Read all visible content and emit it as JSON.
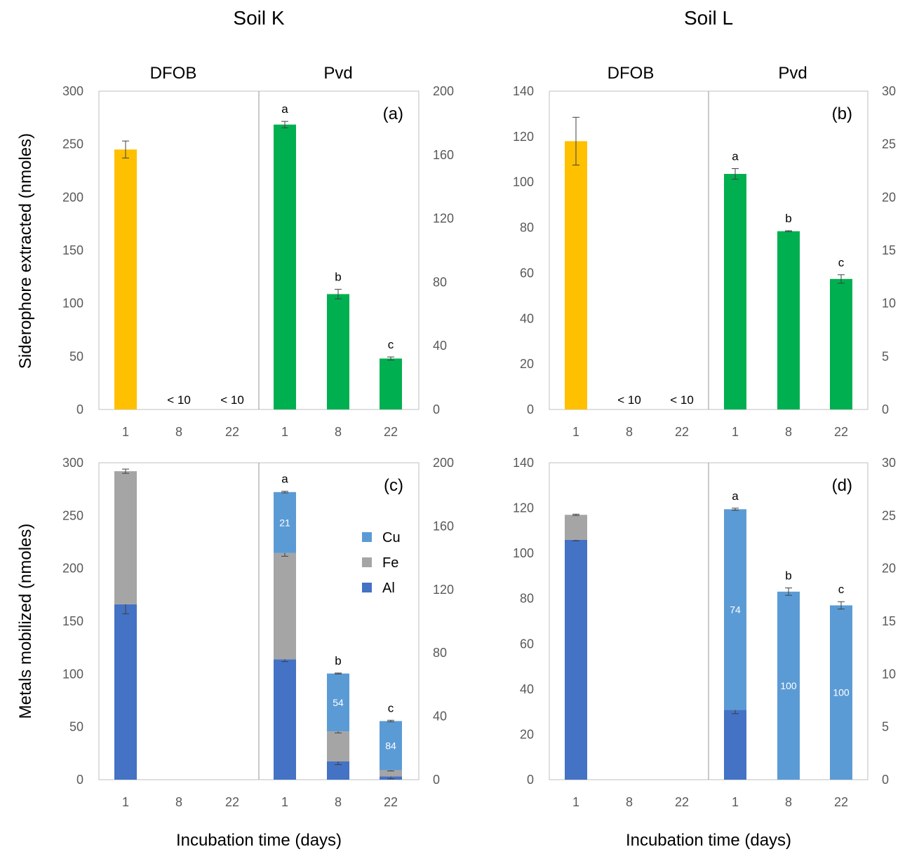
{
  "figure": {
    "titles": {
      "soil_k": "Soil K",
      "soil_l": "Soil L"
    },
    "headers": {
      "dfob": "DFOB",
      "pvd": "Pvd"
    },
    "ylabel_top": "Siderophore extracted (nmoles)",
    "ylabel_bottom": "Metals mobilized (nmoles)",
    "xlabel": "Incubation time (days)",
    "legend": [
      "Cu",
      "Fe",
      "Al"
    ]
  },
  "colors": {
    "dfob": "#FFC000",
    "pvd": "#00B050",
    "Cu": "#5B9BD5",
    "Fe": "#A5A5A5",
    "Al": "#4472C4",
    "axis": "#BFBFBF",
    "tick_text": "#595959"
  },
  "chart_data": [
    {
      "panel": "(a)",
      "type": "bar",
      "soil": "Soil K",
      "categories": [
        "1",
        "8",
        "22"
      ],
      "dfob": {
        "y_axis": "left",
        "ylim": [
          0,
          300
        ],
        "ticks": [
          0,
          50,
          100,
          150,
          200,
          250,
          300
        ],
        "values": [
          245,
          null,
          null
        ],
        "errors": [
          8,
          null,
          null
        ],
        "labels": [
          "",
          "< 10",
          "< 10"
        ]
      },
      "pvd": {
        "y_axis": "right",
        "ylim": [
          0,
          200
        ],
        "ticks": [
          0,
          40,
          80,
          120,
          160,
          200
        ],
        "values": [
          179,
          72.5,
          32
        ],
        "errors": [
          2,
          3,
          1
        ],
        "letters": [
          "a",
          "b",
          "c"
        ]
      }
    },
    {
      "panel": "(b)",
      "type": "bar",
      "soil": "Soil L",
      "categories": [
        "1",
        "8",
        "22"
      ],
      "dfob": {
        "y_axis": "left",
        "ylim": [
          0,
          140
        ],
        "ticks": [
          0,
          20,
          40,
          60,
          80,
          100,
          120,
          140
        ],
        "values": [
          118,
          null,
          null
        ],
        "errors": [
          10.5,
          null,
          null
        ],
        "labels": [
          "",
          "< 10",
          "< 10"
        ]
      },
      "pvd": {
        "y_axis": "right",
        "ylim": [
          0,
          30
        ],
        "ticks": [
          0,
          5,
          10,
          15,
          20,
          25,
          30
        ],
        "values": [
          22.2,
          16.8,
          12.3
        ],
        "errors": [
          0.5,
          0.05,
          0.4
        ],
        "letters": [
          "a",
          "b",
          "c"
        ]
      }
    },
    {
      "panel": "(c)",
      "type": "bar",
      "stacked": true,
      "soil": "Soil K",
      "categories": [
        "1",
        "8",
        "22"
      ],
      "dfob": {
        "y_axis": "left",
        "ylim": [
          0,
          300
        ],
        "ticks": [
          0,
          50,
          100,
          150,
          200,
          250,
          300
        ],
        "series": [
          {
            "name": "Al",
            "values": [
              166,
              0,
              0
            ],
            "errors": [
              9,
              0,
              0
            ]
          },
          {
            "name": "Fe",
            "values": [
              126,
              0,
              0
            ],
            "errors": [
              2,
              0,
              0
            ]
          },
          {
            "name": "Cu",
            "values": [
              0,
              0,
              0
            ],
            "errors": [
              0,
              0,
              0
            ]
          }
        ]
      },
      "pvd": {
        "y_axis": "right",
        "ylim": [
          0,
          200
        ],
        "ticks": [
          0,
          40,
          80,
          120,
          160,
          200
        ],
        "series": [
          {
            "name": "Al",
            "values": [
              76,
              11.5,
              2
            ],
            "errors": [
              1.5,
              2,
              1.5
            ]
          },
          {
            "name": "Fe",
            "values": [
              67,
              19,
              4
            ],
            "errors": [
              2,
              1,
              0.5
            ]
          },
          {
            "name": "Cu",
            "values": [
              38.5,
              36.5,
              31
            ],
            "errors": [
              0.5,
              0.3,
              0.5
            ]
          }
        ],
        "letters": [
          "a",
          "b",
          "c"
        ],
        "bar_labels": [
          "21",
          "54",
          "84"
        ]
      }
    },
    {
      "panel": "(d)",
      "type": "bar",
      "stacked": true,
      "soil": "Soil L",
      "categories": [
        "1",
        "8",
        "22"
      ],
      "dfob": {
        "y_axis": "left",
        "ylim": [
          0,
          140
        ],
        "ticks": [
          0,
          20,
          40,
          60,
          80,
          100,
          120,
          140
        ],
        "series": [
          {
            "name": "Al",
            "values": [
              106,
              0,
              0
            ],
            "errors": [
              0.5,
              0,
              0
            ]
          },
          {
            "name": "Fe",
            "values": [
              11,
              0,
              0
            ],
            "errors": [
              0.3,
              0,
              0
            ]
          },
          {
            "name": "Cu",
            "values": [
              0,
              0,
              0
            ],
            "errors": [
              0,
              0,
              0
            ]
          }
        ]
      },
      "pvd": {
        "y_axis": "right",
        "ylim": [
          0,
          30
        ],
        "ticks": [
          0,
          5,
          10,
          15,
          20,
          25,
          30
        ],
        "series": [
          {
            "name": "Al",
            "values": [
              6.6,
              0,
              0
            ],
            "errors": [
              0.35,
              0,
              0
            ]
          },
          {
            "name": "Fe",
            "values": [
              0,
              0,
              0
            ],
            "errors": [
              0,
              0,
              0
            ]
          },
          {
            "name": "Cu",
            "values": [
              19,
              17.8,
              16.5
            ],
            "errors": [
              0.1,
              0.35,
              0.35
            ]
          }
        ],
        "letters": [
          "a",
          "b",
          "c"
        ],
        "bar_labels": [
          "74",
          "100",
          "100"
        ]
      }
    }
  ]
}
